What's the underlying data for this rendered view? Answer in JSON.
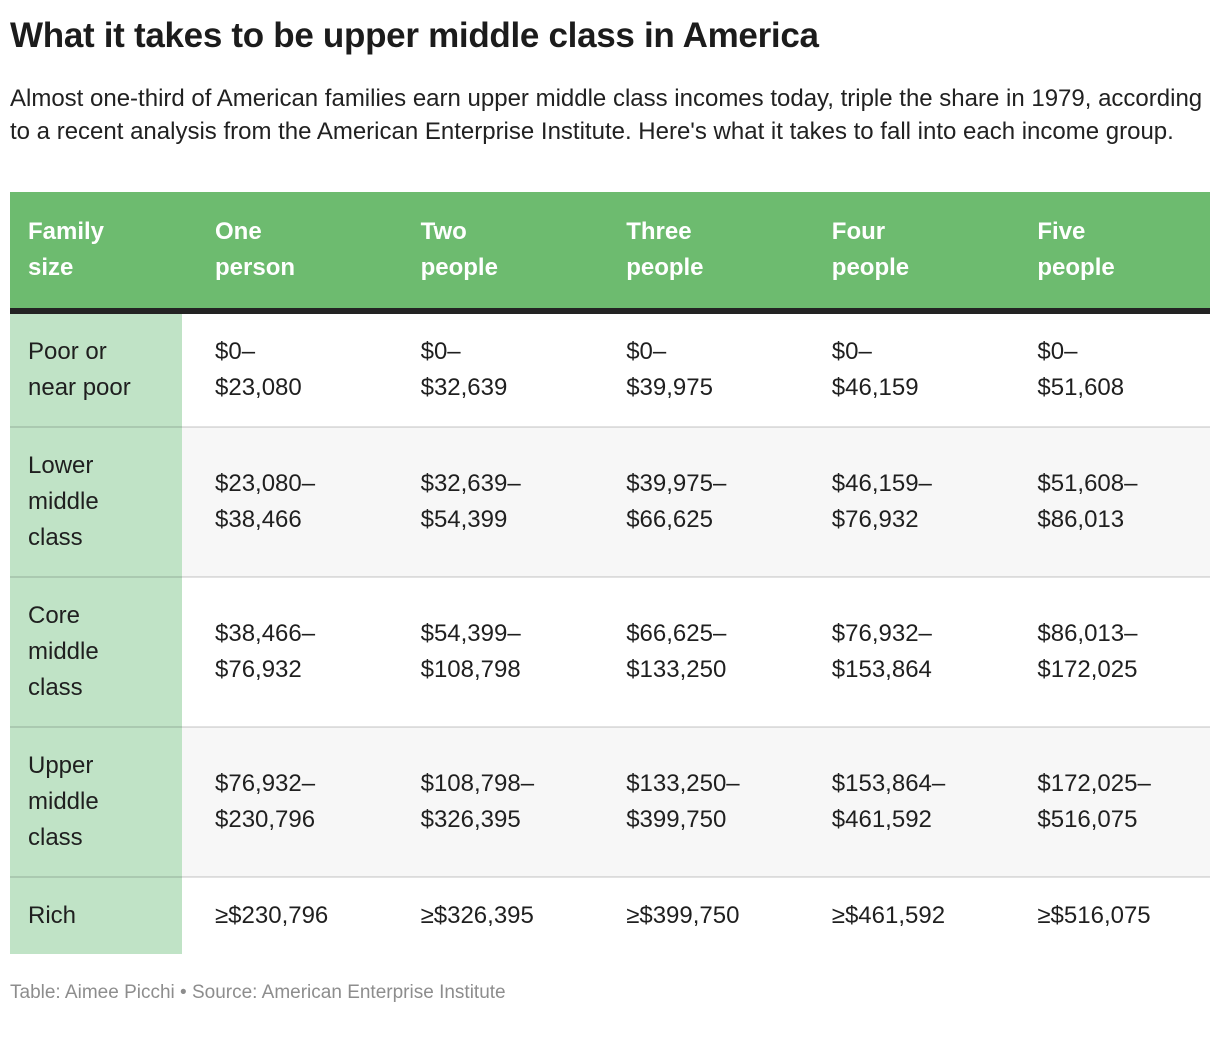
{
  "header": {
    "title": "What it takes to be upper middle class in America",
    "subtitle": "Almost one-third of American families earn upper middle class incomes today, triple the share in 1979, according to a recent analysis from the American Enterprise Institute. Here's what it takes to fall into each income group."
  },
  "chart_data": {
    "type": "table",
    "title": "What it takes to be upper middle class in America",
    "subtitle": "Almost one-third of American families earn upper middle class incomes today, triple the share in 1979, according to a recent analysis from the American Enterprise Institute. Here's what it takes to fall into each income group.",
    "columns": [
      "Family size",
      "One person",
      "Two people",
      "Three people",
      "Four people",
      "Five people"
    ],
    "rows": [
      [
        "Poor or near poor",
        "$0–$23,080",
        "$0–$32,639",
        "$0–$39,975",
        "$0–$46,159",
        "$0–$51,608"
      ],
      [
        "Lower middle class",
        "$23,080–$38,466",
        "$32,639–$54,399",
        "$39,975–$66,625",
        "$46,159–$76,932",
        "$51,608–$86,013"
      ],
      [
        "Core middle class",
        "$38,466–$76,932",
        "$54,399–$108,798",
        "$66,625–$133,250",
        "$76,932–$153,864",
        "$86,013–$172,025"
      ],
      [
        "Upper middle class",
        "$76,932–$230,796",
        "$108,798–$326,395",
        "$133,250–$399,750",
        "$153,864–$461,592",
        "$172,025–$516,075"
      ],
      [
        "Rich",
        "≥$230,796",
        "≥$326,395",
        "≥$399,750",
        "≥$461,592",
        "≥$516,075"
      ]
    ],
    "credit": "Table: Aimee Picchi • Source: American Enterprise Institute",
    "colors": {
      "header_background": "#6dbb6f",
      "header_text": "#ffffff",
      "row_label_background": "#c0e3c6",
      "alt_row_background": "#f7f7f7",
      "header_divider": "#232323",
      "row_divider": "#e3e3e3",
      "body_text": "#1f1f1f",
      "credit_text": "#8d8d8d"
    }
  },
  "display": {
    "columns": [
      "Family\nsize",
      "One\nperson",
      "Two\npeople",
      "Three\npeople",
      "Four\npeople",
      "Five\npeople"
    ],
    "rows": [
      {
        "label": "Poor or\nnear poor",
        "values": [
          "$0–\n$23,080",
          "$0–\n$32,639",
          "$0–\n$39,975",
          "$0–\n$46,159",
          "$0–\n$51,608"
        ]
      },
      {
        "label": "Lower\nmiddle\nclass",
        "values": [
          "$23,080–\n$38,466",
          "$32,639–\n$54,399",
          "$39,975–\n$66,625",
          "$46,159–\n$76,932",
          "$51,608–\n$86,013"
        ]
      },
      {
        "label": "Core\nmiddle\nclass",
        "values": [
          "$38,466–\n$76,932",
          "$54,399–\n$108,798",
          "$66,625–\n$133,250",
          "$76,932–\n$153,864",
          "$86,013–\n$172,025"
        ]
      },
      {
        "label": "Upper\nmiddle\nclass",
        "values": [
          "$76,932–\n$230,796",
          "$108,798–\n$326,395",
          "$133,250–\n$399,750",
          "$153,864–\n$461,592",
          "$172,025–\n$516,075"
        ]
      },
      {
        "label": "Rich",
        "values": [
          "≥$230,796",
          "≥$326,395",
          "≥$399,750",
          "≥$461,592",
          "≥$516,075"
        ]
      }
    ]
  },
  "footer": {
    "credit": "Table: Aimee Picchi • Source: American Enterprise Institute"
  }
}
